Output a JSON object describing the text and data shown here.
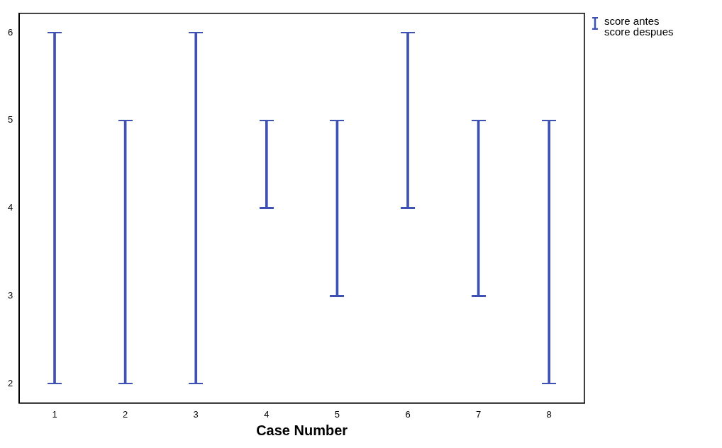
{
  "chart_data": {
    "type": "bar",
    "xlabel": "Case Number",
    "categories": [
      "1",
      "2",
      "3",
      "4",
      "5",
      "6",
      "7",
      "8"
    ],
    "series": [
      {
        "name": "score antes\nscore despues",
        "color": "#3f51b5",
        "base": [
          2,
          2,
          2,
          4,
          3,
          4,
          3,
          2
        ],
        "values": [
          4,
          3,
          4,
          1,
          2,
          2,
          2,
          3
        ]
      }
    ],
    "ylim": [
      1.78,
      6.22
    ],
    "yticks": [
      2,
      3,
      4,
      5,
      6
    ],
    "legend": "top right",
    "grid": false
  }
}
